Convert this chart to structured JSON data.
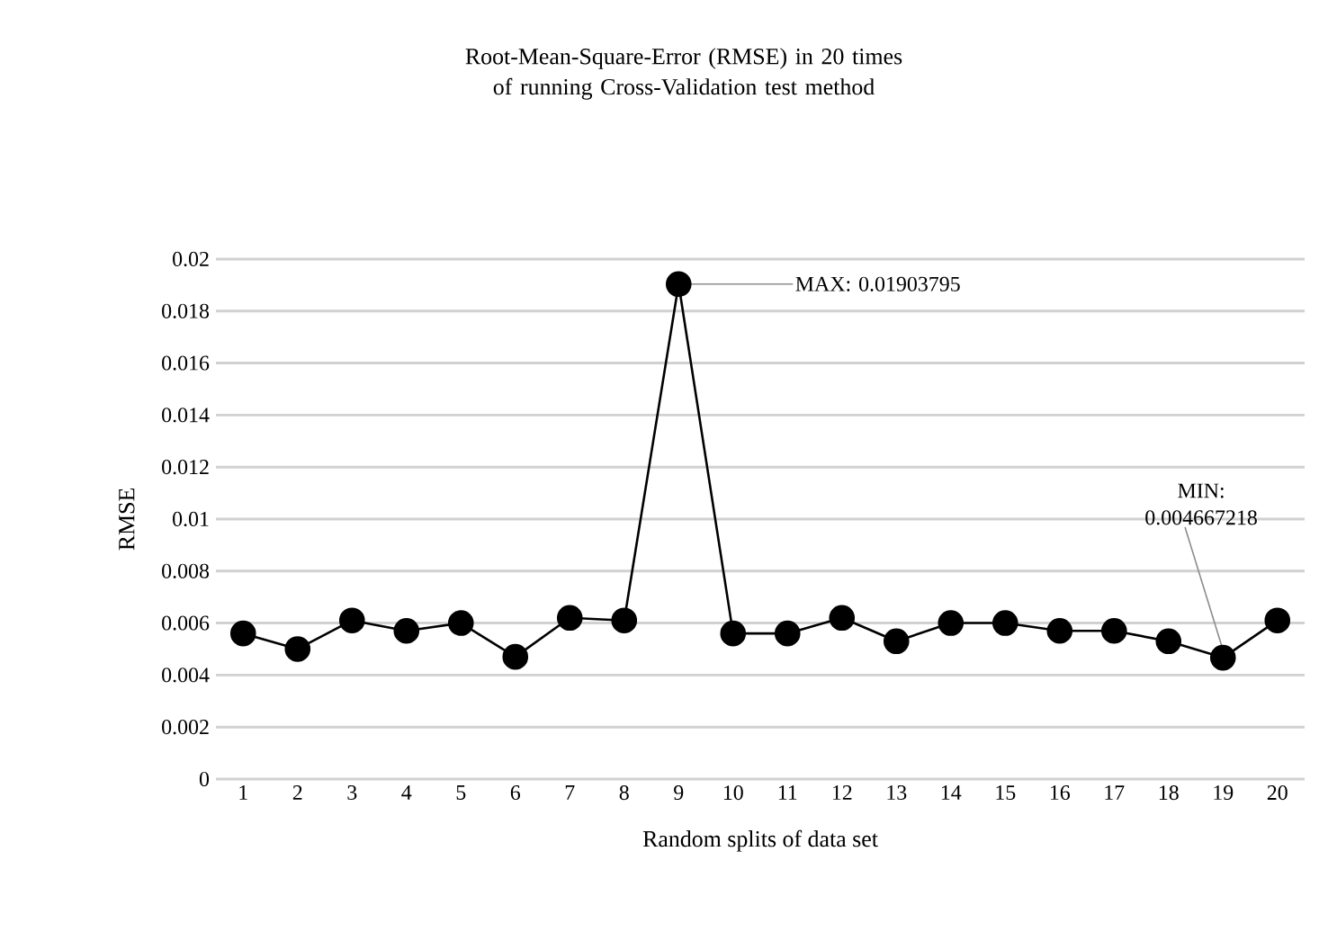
{
  "chart_data": {
    "type": "line",
    "title": "Root-Mean-Square-Error (RMSE) in 20 times of running Cross-Validation test method",
    "xlabel": "Random splits of data set",
    "ylabel": "RMSE",
    "categories": [
      "1",
      "2",
      "3",
      "4",
      "5",
      "6",
      "7",
      "8",
      "9",
      "10",
      "11",
      "12",
      "13",
      "14",
      "15",
      "16",
      "17",
      "18",
      "19",
      "20"
    ],
    "series": [
      {
        "color": "#000000",
        "values": [
          0.0056,
          0.005,
          0.0061,
          0.0057,
          0.006,
          0.0047,
          0.0062,
          0.0061,
          0.01903795,
          0.0056,
          0.0056,
          0.0062,
          0.0053,
          0.006,
          0.006,
          0.0057,
          0.0057,
          0.0053,
          0.004667218,
          0.0061
        ]
      }
    ],
    "ylim": [
      0,
      0.02
    ],
    "yticks": [
      0,
      0.002,
      0.004,
      0.006,
      0.008,
      0.01,
      0.012,
      0.014,
      0.016,
      0.018,
      0.02
    ],
    "grid": "y",
    "marker": "circle",
    "line_style": "solid",
    "annotations": [
      {
        "text": "MAX: 0.01903795",
        "x": "9",
        "y": 0.01903795
      },
      {
        "text": "MIN: 0.004667218",
        "x": "19",
        "y": 0.004667218
      }
    ]
  }
}
